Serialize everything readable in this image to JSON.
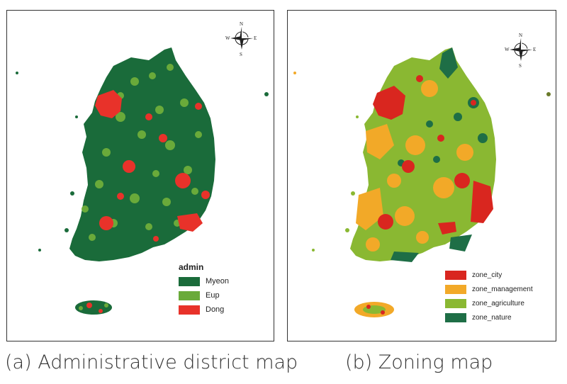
{
  "panel_a": {
    "caption": "(a) Administrative district map",
    "compass": {
      "n": "N",
      "s": "S",
      "e": "E",
      "w": "W"
    },
    "legend": {
      "title": "admin",
      "items": [
        {
          "label": "Myeon",
          "color": "#1a6b3a"
        },
        {
          "label": "Eup",
          "color": "#6aaa3a"
        },
        {
          "label": "Dong",
          "color": "#e8322a"
        }
      ]
    }
  },
  "panel_b": {
    "caption": "(b) Zoning map",
    "compass": {
      "n": "N",
      "s": "S",
      "e": "E",
      "w": "W"
    },
    "legend": {
      "items": [
        {
          "label": "zone_city",
          "color": "#d9261f"
        },
        {
          "label": "zone_management",
          "color": "#f2a928"
        },
        {
          "label": "zone_agriculture",
          "color": "#8ab832"
        },
        {
          "label": "zone_nature",
          "color": "#1e6e46"
        }
      ]
    }
  }
}
